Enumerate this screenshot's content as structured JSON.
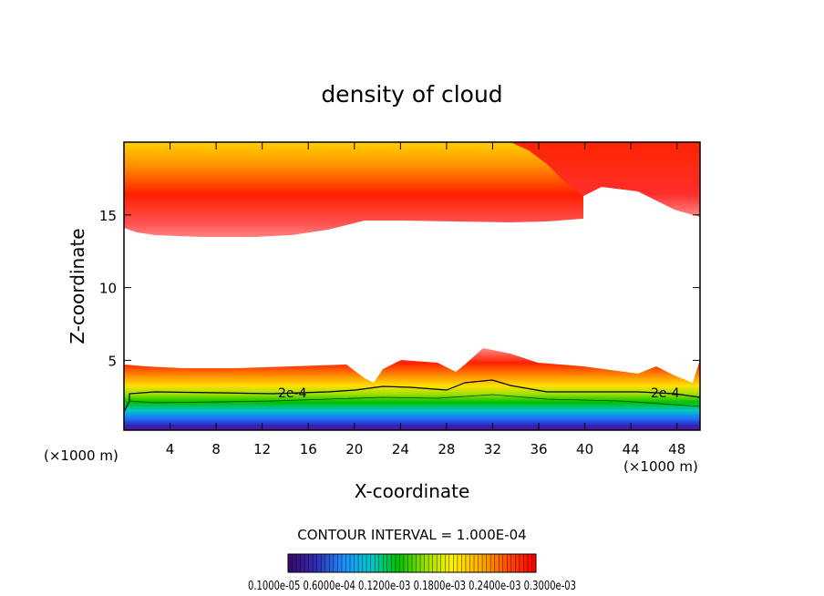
{
  "chart_data": {
    "type": "heatmap",
    "title": "density of cloud",
    "xlabel": "X-coordinate",
    "ylabel": "Z-coordinate",
    "x_units": "(×1000 m)",
    "x_ticks": [
      "4",
      "8",
      "12",
      "16",
      "20",
      "24",
      "28",
      "32",
      "36",
      "40",
      "44",
      "48"
    ],
    "y_ticks": [
      "5",
      "10",
      "15"
    ],
    "xlim": [
      0,
      50
    ],
    "ylim": [
      0.2,
      20
    ],
    "contour_labels": [
      "2e-4",
      "2e-4"
    ],
    "contour_interval": "CONTOUR INTERVAL = 1.000E-04",
    "colorbar_labels_text": "0.1000e-05  0.6000e-04  0.1200e-03  0.1800e-03  0.2400e-03  0.3000e-03",
    "colorbar_range": [
      1e-06,
      0.0003
    ],
    "colormap": [
      "#3b0a6e",
      "#2f2fb8",
      "#1e90ff",
      "#00c8c8",
      "#00c000",
      "#9be000",
      "#fff000",
      "#ffb000",
      "#ff5000",
      "#ff0000"
    ],
    "grid": false
  }
}
